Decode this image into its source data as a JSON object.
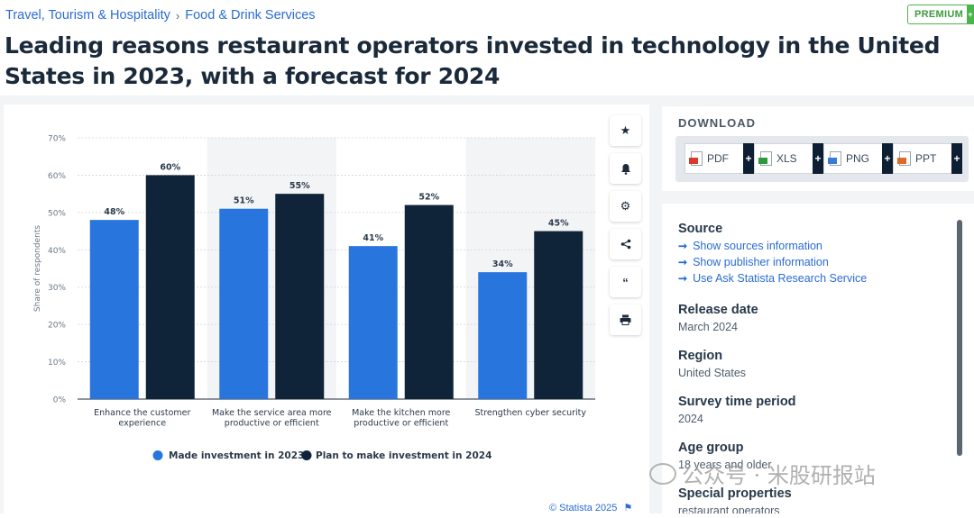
{
  "breadcrumb": {
    "items": [
      "Travel, Tourism & Hospitality",
      "Food & Drink Services"
    ],
    "separator": "›"
  },
  "premium_badge": {
    "label": "PREMIUM",
    "plus": "+"
  },
  "page_title": "Leading reasons restaurant operators invested in technology in the United States in 2023, with a forecast for 2024",
  "toolbar": {
    "icons": [
      "star-icon",
      "bell-icon",
      "gear-icon",
      "share-icon",
      "quote-icon",
      "print-icon"
    ]
  },
  "download": {
    "title": "DOWNLOAD",
    "formats": [
      {
        "label": "PDF",
        "color": "#d93b2b"
      },
      {
        "label": "XLS",
        "color": "#2e9a3c"
      },
      {
        "label": "PNG",
        "color": "#3a7bd5"
      },
      {
        "label": "PPT",
        "color": "#e06a25"
      }
    ],
    "plus": "+"
  },
  "info": {
    "source_head": "Source",
    "source_links": [
      "Show sources information",
      "Show publisher information",
      "Use Ask Statista Research Service"
    ],
    "link_arrow": "➞",
    "release_head": "Release date",
    "release_val": "March 2024",
    "region_head": "Region",
    "region_val": "United States",
    "survey_head": "Survey time period",
    "survey_val": "2024",
    "age_head": "Age group",
    "age_val": "18 years and older",
    "special_head": "Special properties",
    "special_val": "restaurant operators"
  },
  "watermark": "公众号 · 米股研报站",
  "copyright": "© Statista 2025",
  "colors": {
    "series1": "#2876dd",
    "series2": "#0f2339",
    "link": "#2a6cd3"
  },
  "chart_data": {
    "type": "bar",
    "ylabel": "Share of respondents",
    "ylim": [
      0,
      70
    ],
    "yticks": [
      "0%",
      "10%",
      "20%",
      "30%",
      "40%",
      "50%",
      "60%",
      "70%"
    ],
    "grid": true,
    "categories": [
      [
        "Enhance the customer",
        "experience"
      ],
      [
        "Make the service area more",
        "productive or efficient"
      ],
      [
        "Make the kitchen more",
        "productive or efficient"
      ],
      [
        "Strengthen cyber security"
      ]
    ],
    "series": [
      {
        "name": "Made investment in 2023",
        "values": [
          48,
          51,
          41,
          34
        ],
        "labels": [
          "48%",
          "51%",
          "41%",
          "34%"
        ]
      },
      {
        "name": "Plan to make investment in 2024",
        "values": [
          60,
          55,
          52,
          45
        ],
        "labels": [
          "60%",
          "55%",
          "52%",
          "45%"
        ]
      }
    ],
    "legend": "bottom"
  }
}
